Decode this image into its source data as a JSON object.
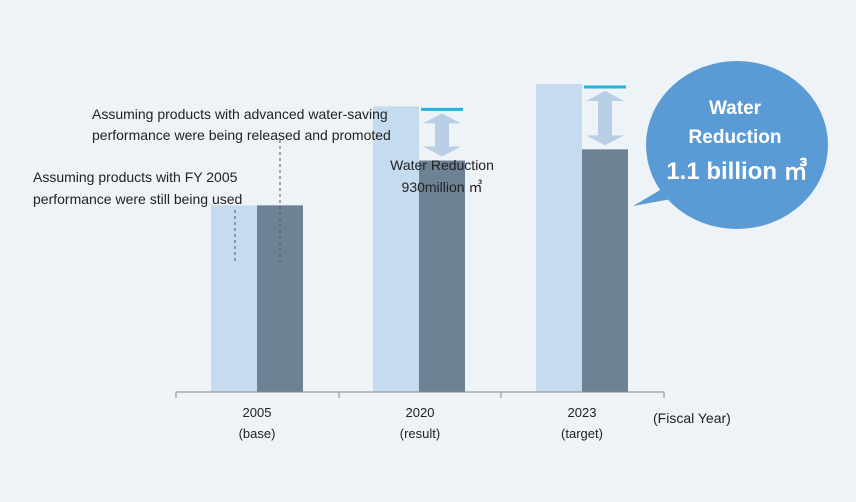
{
  "chart_data": {
    "type": "bar",
    "categories": [
      "2005",
      "2020",
      "2023"
    ],
    "category_sublabels": [
      "(base)",
      "(result)",
      "(target)"
    ],
    "series": [
      {
        "name": "Assuming products with FY 2005 performance were still being used",
        "values": [
          100,
          153,
          165
        ],
        "color": "#c5dbef"
      },
      {
        "name": "Assuming products with advanced water-saving performance were being released and promoted",
        "values": [
          100,
          124,
          130
        ],
        "color": "#6e8296"
      }
    ],
    "ylim": [
      0,
      210
    ],
    "xlabel": "(Fiscal Year)",
    "ylabel": "",
    "grid": false,
    "colors": {
      "accent_line": "#1eb4dc",
      "arrow": "#b8cfe6",
      "bubble": "#5b9bd5",
      "background": "#eef3f8",
      "axis": "#888888"
    }
  },
  "annotations": {
    "fy2005_line1": "Assuming products with  FY 2005",
    "fy2005_line2": "performance were still being used",
    "advanced_line1": "Assuming products with advanced water-saving",
    "advanced_line2": "performance were being released and promoted",
    "reduction2020_line1": "Water Reduction",
    "reduction2020_line2": "930million ㎥"
  },
  "bubble": {
    "line1": "Water",
    "line2": "Reduction",
    "line3": "1.1 billion ㎥"
  }
}
